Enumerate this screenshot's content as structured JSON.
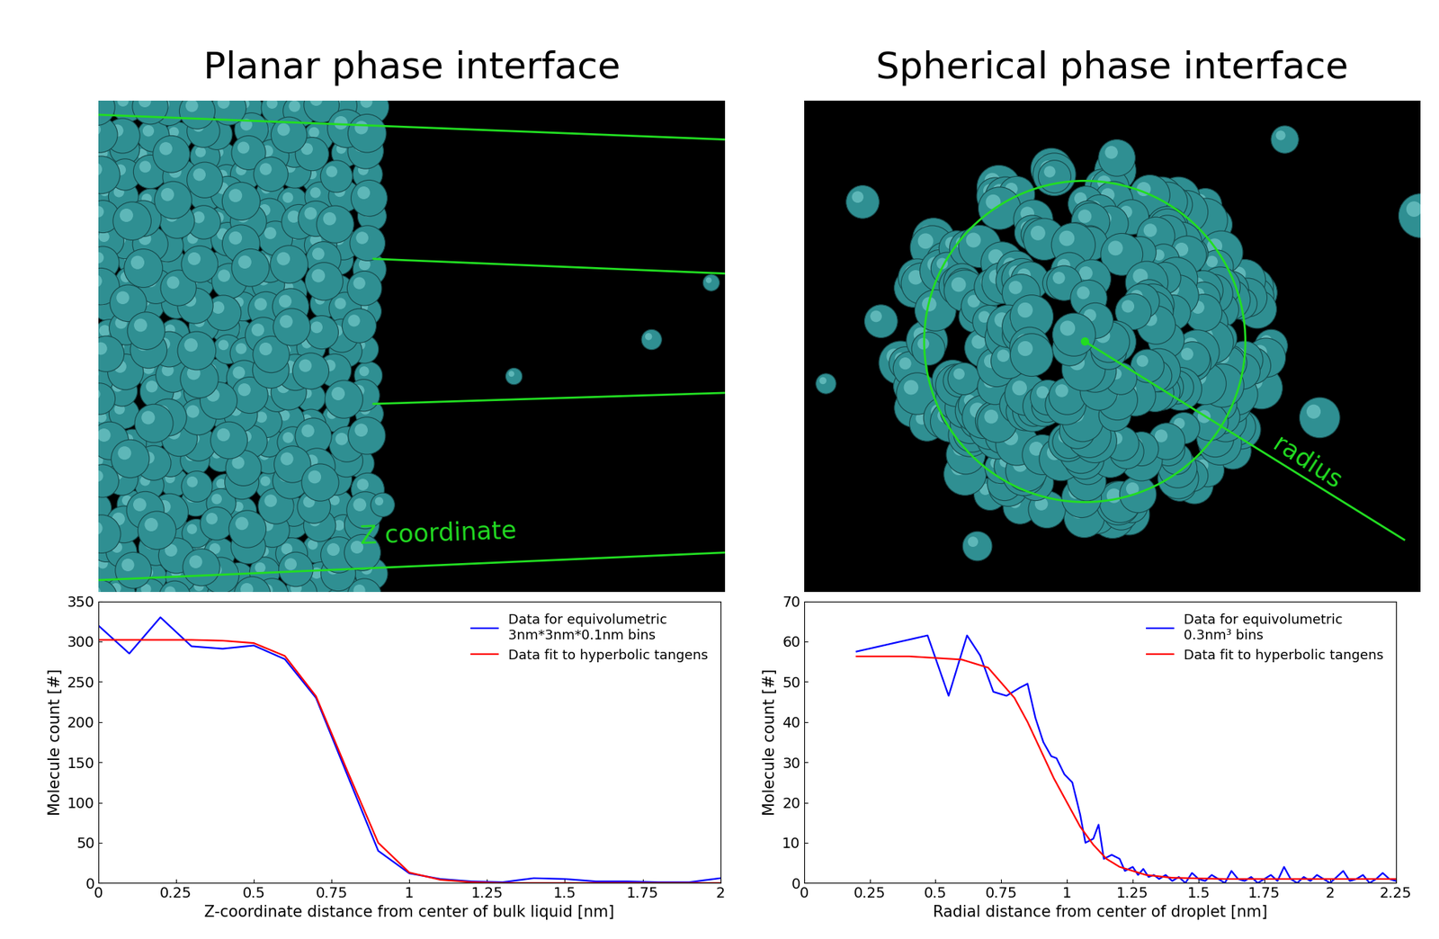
{
  "chart_data": [
    {
      "type": "line",
      "title": "Planar phase interface",
      "annotations": [
        "Z coordinate"
      ],
      "x_label": "Z-coordinate distance from center of bulk liquid [nm]",
      "y_label": "Molecule count [#]",
      "xlim": [
        0,
        2
      ],
      "xticks": [
        0,
        0.25,
        0.5,
        0.75,
        1,
        1.25,
        1.5,
        1.75,
        2
      ],
      "ylim": [
        0,
        350
      ],
      "yticks": [
        0,
        50,
        100,
        150,
        200,
        250,
        300,
        350
      ],
      "legend": "upper right",
      "series": [
        {
          "name": "Data for equivolumetric\n3nm*3nm*0.1nm bins",
          "color": "#0000ff",
          "x": [
            0,
            0.1,
            0.2,
            0.3,
            0.4,
            0.5,
            0.6,
            0.7,
            0.8,
            0.9,
            1,
            1.1,
            1.2,
            1.3,
            1.4,
            1.5,
            1.6,
            1.7,
            1.8,
            1.9,
            2
          ],
          "values": [
            320,
            285,
            330,
            294,
            291,
            295,
            278,
            230,
            135,
            40,
            12,
            5,
            2,
            1,
            6,
            5,
            2,
            2,
            1,
            1,
            6
          ]
        },
        {
          "name": "Data fit to hyperbolic tangens",
          "color": "#ff0000",
          "x": [
            0,
            0.1,
            0.2,
            0.3,
            0.4,
            0.5,
            0.6,
            0.7,
            0.8,
            0.9,
            1,
            1.1,
            1.2,
            1.3,
            1.4,
            1.5,
            1.6,
            1.7,
            1.8,
            1.9,
            2
          ],
          "values": [
            302,
            302,
            302,
            302,
            301,
            298,
            282,
            232,
            140,
            50,
            13,
            4,
            1,
            0,
            0,
            0,
            0,
            0,
            0,
            0,
            0
          ]
        }
      ]
    },
    {
      "type": "line",
      "title": "Spherical phase interface",
      "annotations": [
        "radius"
      ],
      "x_label": "Radial distance from center of droplet [nm]",
      "y_label": "Molecule count [#]",
      "xlim": [
        0,
        2.25
      ],
      "xticks": [
        0,
        0.25,
        0.5,
        0.75,
        1,
        1.25,
        1.5,
        1.75,
        2,
        2.25
      ],
      "ylim": [
        0,
        70
      ],
      "yticks": [
        0,
        10,
        20,
        30,
        40,
        50,
        60,
        70
      ],
      "legend": "upper right",
      "series": [
        {
          "name": "Data for equivolumetric\n0.3nm³ bins",
          "color": "#0000ff",
          "x": [
            0.2,
            0.47,
            0.55,
            0.62,
            0.67,
            0.72,
            0.77,
            0.82,
            0.85,
            0.88,
            0.91,
            0.94,
            0.96,
            0.99,
            1.02,
            1.05,
            1.07,
            1.1,
            1.12,
            1.14,
            1.17,
            1.2,
            1.22,
            1.25,
            1.27,
            1.29,
            1.31,
            1.33,
            1.35,
            1.375,
            1.4,
            1.425,
            1.45,
            1.475,
            1.5,
            1.525,
            1.55,
            1.575,
            1.6,
            1.625,
            1.65,
            1.675,
            1.7,
            1.725,
            1.75,
            1.775,
            1.8,
            1.825,
            1.85,
            1.875,
            1.9,
            1.925,
            1.95,
            1.975,
            2,
            2.025,
            2.05,
            2.075,
            2.1,
            2.125,
            2.15,
            2.175,
            2.2,
            2.225,
            2.25
          ],
          "values": [
            57.5,
            61.5,
            46.5,
            61.5,
            56.5,
            47.5,
            46.5,
            48.5,
            49.5,
            41,
            35,
            31.5,
            31,
            27,
            25,
            17,
            10,
            11,
            14.5,
            6,
            7,
            6,
            3,
            4,
            2,
            3.5,
            1.5,
            2,
            1,
            2,
            0.5,
            1.5,
            0,
            2.5,
            1,
            0.5,
            2,
            1,
            0,
            3,
            1,
            0.5,
            1.5,
            0,
            1,
            2,
            0.5,
            4,
            1,
            0,
            1.5,
            0.5,
            2,
            1,
            0,
            1.5,
            3,
            0.5,
            1,
            2,
            0,
            1,
            2.5,
            1,
            0.5
          ]
        },
        {
          "name": "Data fit to hyperbolic tangens",
          "color": "#ff0000",
          "x": [
            0.2,
            0.4,
            0.6,
            0.7,
            0.8,
            0.85,
            0.9,
            0.95,
            1,
            1.05,
            1.1,
            1.15,
            1.2,
            1.3,
            1.4,
            1.6,
            1.8,
            2,
            2.25
          ],
          "values": [
            56.3,
            56.3,
            55.5,
            53.5,
            46,
            40,
            33,
            26,
            20,
            14,
            9.5,
            6,
            4,
            2,
            1.3,
            1,
            1,
            1,
            1
          ]
        }
      ]
    }
  ]
}
